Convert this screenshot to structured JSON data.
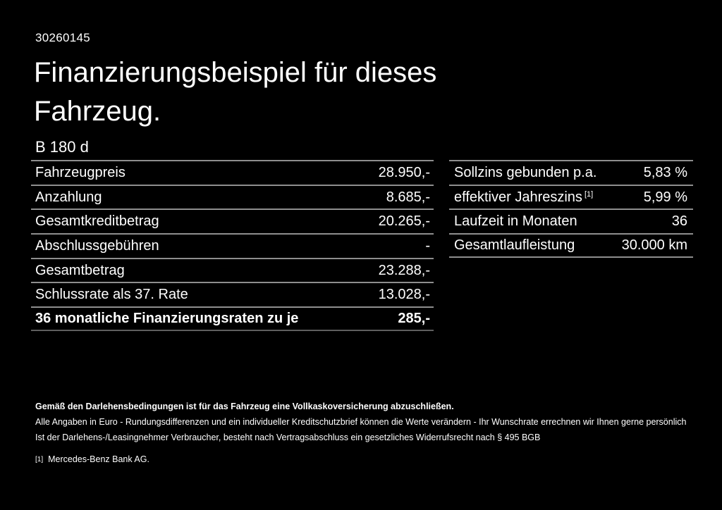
{
  "header": {
    "id_number": "30260145",
    "title": "Finanzierungsbeispiel für dieses Fahrzeug.",
    "model": "B 180 d"
  },
  "finance_table": {
    "rows": [
      {
        "label": "Fahrzeugpreis",
        "value": "28.950,-"
      },
      {
        "label": "Anzahlung",
        "value": "8.685,-"
      },
      {
        "label": "Gesamtkreditbetrag",
        "value": "20.265,-"
      },
      {
        "label": "Abschlussgebühren",
        "value": "-"
      },
      {
        "label": "Gesamtbetrag",
        "value": "23.288,-"
      },
      {
        "label": "Schlussrate als 37. Rate",
        "value": "13.028,-"
      },
      {
        "label": "36 monatliche Finanzierungsraten zu je",
        "value": "285,-"
      }
    ]
  },
  "conditions_table": {
    "rows": [
      {
        "label": "Sollzins gebunden p.a.",
        "value": "5,83 %"
      },
      {
        "label": "effektiver Jahreszins",
        "footnote_marker": "[1]",
        "value": "5,99 %"
      },
      {
        "label": "Laufzeit in Monaten",
        "value": "36"
      },
      {
        "label": "Gesamtlaufleistung",
        "value": "30.000 km"
      }
    ]
  },
  "footer": {
    "insurance_note": "Gemäß den Darlehensbedingungen ist für das Fahrzeug eine Vollkaskoversicherung abzuschließen.",
    "disclaimer": "Alle Angaben in Euro - Rundungsdifferenzen und ein individueller Kreditschutzbrief können die Werte verändern - Ihr Wunschrate errechnen wir Ihnen gerne persönlich",
    "withdrawal_note": "Ist der Darlehens-/Leasingnehmer Verbraucher, besteht nach Vertragsabschluss ein gesetzliches Widerrufsrecht nach § 495 BGB",
    "footnote_marker": "[1]",
    "footnote_text": "Mercedes-Benz Bank AG."
  },
  "colors": {
    "background": "#000000",
    "text": "#ffffff",
    "divider": "#8e8e8e"
  }
}
